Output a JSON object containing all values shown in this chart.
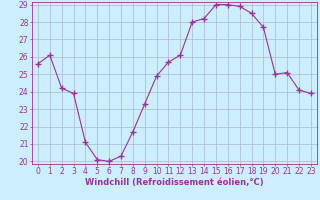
{
  "x": [
    0,
    1,
    2,
    3,
    4,
    5,
    6,
    7,
    8,
    9,
    10,
    11,
    12,
    13,
    14,
    15,
    16,
    17,
    18,
    19,
    20,
    21,
    22,
    23
  ],
  "y": [
    25.6,
    26.1,
    24.2,
    23.9,
    21.1,
    20.1,
    20.0,
    20.3,
    21.7,
    23.3,
    24.9,
    25.7,
    26.1,
    28.0,
    28.2,
    29.0,
    29.0,
    28.9,
    28.5,
    27.7,
    25.0,
    25.1,
    24.1,
    23.9
  ],
  "line_color": "#993399",
  "marker": "+",
  "marker_size": 4,
  "bg_color": "#cceeff",
  "grid_color": "#aabbcc",
  "axis_color": "#993399",
  "xlabel": "Windchill (Refroidissement éolien,°C)",
  "ylim": [
    20,
    29
  ],
  "xlim": [
    -0.5,
    23.5
  ],
  "yticks": [
    20,
    21,
    22,
    23,
    24,
    25,
    26,
    27,
    28,
    29
  ],
  "xticks": [
    0,
    1,
    2,
    3,
    4,
    5,
    6,
    7,
    8,
    9,
    10,
    11,
    12,
    13,
    14,
    15,
    16,
    17,
    18,
    19,
    20,
    21,
    22,
    23
  ],
  "tick_color": "#993399",
  "label_fontsize": 6,
  "tick_fontsize": 5.5
}
